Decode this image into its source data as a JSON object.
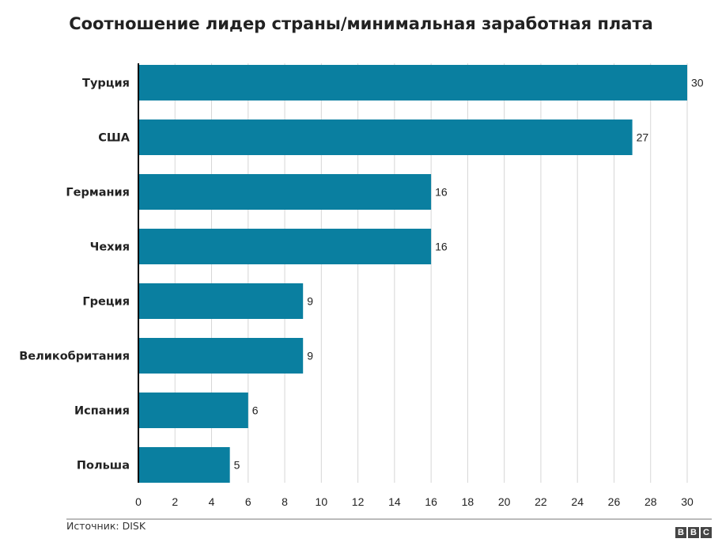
{
  "chart_data": {
    "type": "bar",
    "orientation": "horizontal",
    "title": "Соотношение лидер страны/минимальная заработная плата",
    "categories": [
      "Турция",
      "США",
      "Германия",
      "Чехия",
      "Греция",
      "Великобритания",
      "Испания",
      "Польша"
    ],
    "values": [
      30,
      27,
      16,
      16,
      9,
      9,
      6,
      5
    ],
    "xlim": [
      0,
      30
    ],
    "xticks": [
      0,
      2,
      4,
      6,
      8,
      10,
      12,
      14,
      16,
      18,
      20,
      22,
      24,
      26,
      28,
      30
    ],
    "grid": true,
    "bar_color": "#0a7fa0",
    "data_labels": true
  },
  "footer": {
    "source": "Источник: DISK",
    "logo": "BBC"
  }
}
